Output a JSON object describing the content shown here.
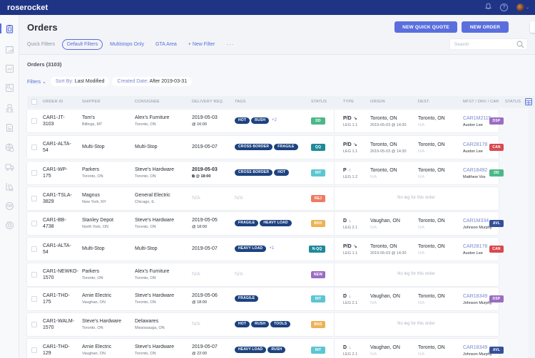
{
  "app": {
    "logo": "roserocket"
  },
  "topbar": {
    "icons": [
      "bell-icon",
      "help-icon",
      "avatar"
    ],
    "help_glyph": "?"
  },
  "sidebar": {
    "items": [
      {
        "name": "orders",
        "icon": "clipboard-icon",
        "active": true
      },
      {
        "name": "calendar",
        "icon": "calendar-chart-icon"
      },
      {
        "name": "reports",
        "icon": "line-chart-icon"
      },
      {
        "name": "dashboard",
        "icon": "chart-board-icon"
      },
      {
        "name": "customers",
        "icon": "users-icon"
      },
      {
        "name": "invoices",
        "icon": "invoice-icon"
      },
      {
        "name": "global-rates",
        "icon": "globe-dollar-icon"
      },
      {
        "name": "fleet",
        "icon": "truck-icon"
      },
      {
        "name": "warehouse",
        "icon": "forklift-icon"
      },
      {
        "name": "partners",
        "icon": "partners-icon"
      },
      {
        "name": "settings",
        "icon": "gear-icon"
      }
    ]
  },
  "header": {
    "title": "Orders",
    "quick_filters_label": "Quick Filters",
    "quick_filters": [
      "Default Filters",
      "Multistops Only",
      "GTA Area",
      "+ New Filter"
    ],
    "more": "···",
    "buttons": {
      "quick_quote": "NEW QUICK QUOTE",
      "new_order": "NEW ORDER",
      "more": "···"
    },
    "search_placeholder": "Search"
  },
  "list": {
    "count_label": "Orders (3103)",
    "filters_label": "Filters",
    "sort_key": "Sort By:",
    "sort_value": "Last Modified",
    "date_key": "Created Date:",
    "date_value": "After 2019-03-31"
  },
  "columns": [
    "ORDER ID",
    "SHIPPER",
    "CONSIGNEE",
    "DELIVERY REQ.",
    "TAGS",
    "STATUS",
    "TYPE",
    "ORIGIN",
    "DEST.",
    "MFST / DRV / CAR",
    "STATUS"
  ],
  "status_colors": {
    "DD": "#4cb88a",
    "QQ": "#1f8a9a",
    "INT": "#5cc6d2",
    "REJ": "#f07a63",
    "BKD": "#edb156",
    "N-QQ": "#1f8a9a",
    "NEW": "#9a6cc4",
    "DSP": "#9a6cc4",
    "CAN": "#d9484f",
    "AVL": "#34509a"
  },
  "rows": [
    {
      "id1": "CAR1-JT-",
      "id2": "3103",
      "shipper": "Tom's",
      "shipper_loc": "Billings, MT",
      "consignee": "Alex's Furniture",
      "consignee_loc": "Toronto, ON",
      "delivery": "2019-05-03",
      "delivery_time": "@ 16:00",
      "tags": [
        "HOT",
        "RUSH"
      ],
      "more_tags": "+2",
      "status": "DD",
      "type": "P/D",
      "type_arrow": "↘",
      "leg": "LEG 1.1",
      "origin": "Toronto, ON",
      "origin_sub": "2019-05-03 @ 14:30",
      "dest": "Toronto, ON",
      "dest_sub": "N/A",
      "carrier": "CAR1M2115",
      "driver": "Auston Lee",
      "leg_status": "DSP"
    },
    {
      "id1": "CAR1-ALTA-",
      "id2": "54",
      "shipper": "Multi-Stop",
      "shipper_loc": "",
      "consignee": "Multi-Stop",
      "consignee_loc": "",
      "delivery": "2019-05-07",
      "delivery_time": "",
      "tags": [
        "CROSS BORDER",
        "FRAGILE"
      ],
      "more_tags": "",
      "status": "QQ",
      "type": "P/D",
      "type_arrow": "↘",
      "leg": "LEG 1.1",
      "origin": "Toronto, ON",
      "origin_sub": "2019-05-03 @ 14:30",
      "dest": "Toronto, ON",
      "dest_sub": "N/A",
      "carrier": "CAR28178",
      "driver": "Auston Lee",
      "leg_status": "CAN"
    },
    {
      "id1": "CAR1-WP-",
      "id2": "175",
      "shipper": "Parkers",
      "shipper_loc": "Toronto, ON",
      "consignee": "Steve's Hardware",
      "consignee_loc": "Toronto, ON",
      "delivery": "2019-05-03",
      "delivery_time": "⧉ @ 18:00",
      "delivery_bold": true,
      "tags": [
        "CROSS BORDER",
        "HOT"
      ],
      "more_tags": "",
      "status": "INT",
      "type": "P",
      "type_arrow": "↑",
      "leg": "LEG 1.2",
      "origin": "Toronto, ON",
      "origin_sub": "N/A",
      "dest": "Toronto, ON",
      "dest_sub": "N/A",
      "carrier": "CAR18492",
      "driver": "Matthew Vos",
      "leg_status": "DD"
    },
    {
      "id1": "CAR1-TSLA-",
      "id2": "3829",
      "shipper": "Magnus",
      "shipper_loc": "New York, NY",
      "consignee": "General Electric",
      "consignee_loc": "Chicago, IL",
      "delivery": "N/A",
      "delivery_time": "",
      "delivery_na": true,
      "tags": [],
      "tags_na": "N/A",
      "more_tags": "",
      "status": "REJ",
      "no_leg": "No leg for this order"
    },
    {
      "id1": "CAR1-BB-",
      "id2": "4738",
      "shipper": "Stanley Depot",
      "shipper_loc": "North York, ON",
      "consignee": "Steve's Hardware",
      "consignee_loc": "Toronto, ON",
      "delivery": "2019-05-05",
      "delivery_time": "@ 18:00",
      "tags": [
        "FRAGILE",
        "HEAVY LOAD"
      ],
      "more_tags": "",
      "status": "BKD",
      "type": "D",
      "type_arrow": "↓",
      "leg": "LEG 2.1",
      "origin": "Vaughan, ON",
      "origin_sub": "N/A",
      "dest": "Toronto, ON",
      "dest_sub": "N/A",
      "carrier": "CAR1M334",
      "driver": "Johnson Murphy",
      "leg_status": "AVL"
    },
    {
      "id1": "CAR1-ALTA-",
      "id2": "54",
      "shipper": "Multi-Stop",
      "shipper_loc": "",
      "consignee": "Multi-Stop",
      "consignee_loc": "",
      "delivery": "2019-05-07",
      "delivery_time": "",
      "tags": [
        "HEAVY LOAD"
      ],
      "more_tags": "+1",
      "status": "N-QQ",
      "type": "P/D",
      "type_arrow": "↘",
      "leg": "LEG 1.1",
      "origin": "Toronto, ON",
      "origin_sub": "2019-05-03 @ 14:30",
      "dest": "Toronto, ON",
      "dest_sub": "N/A",
      "carrier": "CAR28178",
      "driver": "Auston Lee",
      "leg_status": "CAN"
    },
    {
      "id1": "CAR1-NEWKO-",
      "id2": "1570",
      "shipper": "Parkers",
      "shipper_loc": "Toronto, ON",
      "consignee": "Alex's Furniture",
      "consignee_loc": "Toronto, ON",
      "delivery": "N/A",
      "delivery_time": "",
      "delivery_na": true,
      "tags": [],
      "tags_na": "N/A",
      "more_tags": "",
      "status": "NEW",
      "no_leg": "No leg for this order"
    },
    {
      "id1": "CAR1-THD-",
      "id2": "175",
      "shipper": "Arnie Electric",
      "shipper_loc": "Vaughan, ON",
      "consignee": "Steve's Hardware",
      "consignee_loc": "Toronto, ON",
      "delivery": "2019-05-06",
      "delivery_time": "@ 18:00",
      "tags": [
        "FRAGILE"
      ],
      "more_tags": "",
      "status": "INT",
      "type": "D",
      "type_arrow": "↓",
      "leg": "LEG 2.1",
      "origin": "Vaughan, ON",
      "origin_sub": "N/A",
      "dest": "Toronto, ON",
      "dest_sub": "N/A",
      "carrier": "CAR18349",
      "driver": "Johnson Murphy",
      "leg_status": "DSP"
    },
    {
      "id1": "CAR1-WALM-",
      "id2": "1570",
      "shipper": "Steve's Hardware",
      "shipper_loc": "Toronto, ON",
      "consignee": "Delawares",
      "consignee_loc": "Mississauga, ON",
      "delivery": "N/A",
      "delivery_time": "",
      "delivery_na": true,
      "tags": [
        "HOT",
        "RUSH",
        "TOOLS"
      ],
      "more_tags": "",
      "status": "BKD",
      "no_leg": "No leg for this order"
    },
    {
      "id1": "CAR1-THD-",
      "id2": "129",
      "shipper": "Arnie Electric",
      "shipper_loc": "Vaughan, ON",
      "consignee": "Steve's Hardware",
      "consignee_loc": "Toronto, ON",
      "delivery": "2019-05-07",
      "delivery_time": "@ 22:00",
      "tags": [
        "HEAVY LOAD",
        "RUSH"
      ],
      "more_tags": "",
      "status": "INT",
      "type": "D",
      "type_arrow": "↓",
      "leg": "LEG 2.1",
      "origin": "Vaughan, ON",
      "origin_sub": "N/A",
      "dest": "Toronto, ON",
      "dest_sub": "N/A",
      "carrier": "CAR18349",
      "driver": "Johnson Murphy",
      "leg_status": "AVL"
    }
  ]
}
